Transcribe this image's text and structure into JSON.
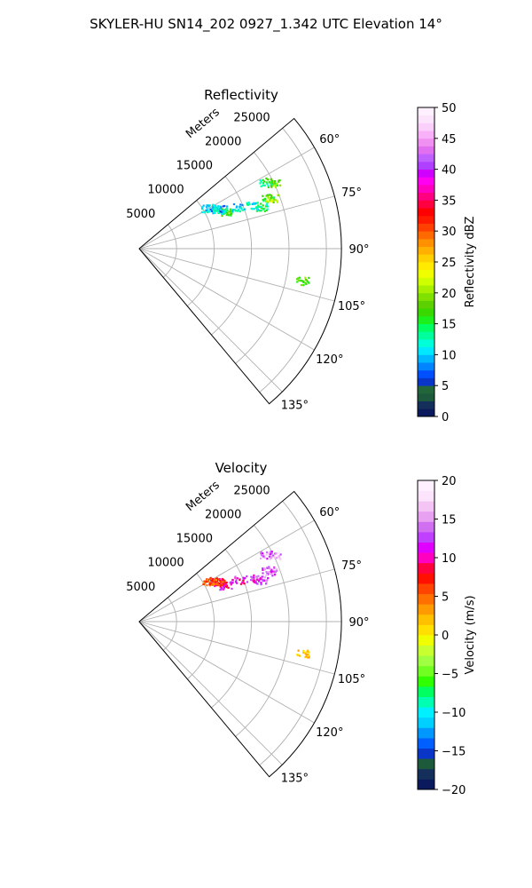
{
  "figure": {
    "title": "SKYLER-HU  SN14_202  0927_1.342 UTC Elevation 14°"
  },
  "chart_data": [
    {
      "type": "polar-sector",
      "title": "Reflectivity",
      "range_label": "Meters",
      "range_ticks": [
        5000,
        10000,
        15000,
        20000,
        25000
      ],
      "range_ticks_text": [
        "5000",
        "10000",
        "15000",
        "20000",
        "25000"
      ],
      "range_max": 27000,
      "azimuth_range_deg": [
        50,
        140
      ],
      "azimuth_ticks_text": [
        "60°",
        "75°",
        "90°",
        "105°",
        "120°",
        "135°"
      ],
      "grid": true,
      "colorbar": {
        "label": "Reflectivity dBZ",
        "min": 0,
        "max": 50,
        "ticks": [
          0,
          5,
          10,
          15,
          20,
          25,
          30,
          35,
          40,
          45,
          50
        ],
        "ticks_text": [
          "0",
          "5",
          "10",
          "15",
          "20",
          "25",
          "30",
          "35",
          "40",
          "45",
          "50"
        ]
      },
      "echo_regions": [
        {
          "azimuth_deg": 64,
          "range_m": 20000,
          "value": 18
        },
        {
          "azimuth_deg": 62,
          "range_m": 19100,
          "value": 15
        },
        {
          "azimuth_deg": 68,
          "range_m": 18500,
          "value": 16
        },
        {
          "azimuth_deg": 69,
          "range_m": 18900,
          "value": 20
        },
        {
          "azimuth_deg": 71,
          "range_m": 17200,
          "value": 14
        },
        {
          "azimuth_deg": 69,
          "range_m": 16100,
          "value": 12
        },
        {
          "azimuth_deg": 67,
          "range_m": 14300,
          "value": 11
        },
        {
          "azimuth_deg": 67,
          "range_m": 12500,
          "value": 17
        },
        {
          "azimuth_deg": 64,
          "range_m": 12000,
          "value": 12
        },
        {
          "azimuth_deg": 63,
          "range_m": 11800,
          "value": 9
        },
        {
          "azimuth_deg": 61,
          "range_m": 11200,
          "value": 12
        },
        {
          "azimuth_deg": 59,
          "range_m": 10600,
          "value": 10
        },
        {
          "azimuth_deg": 101,
          "range_m": 22200,
          "value": 18
        }
      ]
    },
    {
      "type": "polar-sector",
      "title": "Velocity",
      "range_label": "Meters",
      "range_ticks": [
        5000,
        10000,
        15000,
        20000,
        25000
      ],
      "range_ticks_text": [
        "5000",
        "10000",
        "15000",
        "20000",
        "25000"
      ],
      "range_max": 27000,
      "azimuth_range_deg": [
        50,
        140
      ],
      "azimuth_ticks_text": [
        "60°",
        "75°",
        "90°",
        "105°",
        "120°",
        "135°"
      ],
      "grid": true,
      "colorbar": {
        "label": "Velocity (m/s)",
        "min": -20,
        "max": 20,
        "ticks": [
          -20,
          -15,
          -10,
          -5,
          0,
          5,
          10,
          15,
          20
        ],
        "ticks_text": [
          "−20",
          "−15",
          "−10",
          "−5",
          "0",
          "5",
          "10",
          "15",
          "20"
        ]
      },
      "echo_regions": [
        {
          "azimuth_deg": 64,
          "range_m": 20000,
          "value": 16
        },
        {
          "azimuth_deg": 62,
          "range_m": 19100,
          "value": 14
        },
        {
          "azimuth_deg": 68,
          "range_m": 18500,
          "value": 13
        },
        {
          "azimuth_deg": 69,
          "range_m": 18900,
          "value": 14
        },
        {
          "azimuth_deg": 71,
          "range_m": 17200,
          "value": 13
        },
        {
          "azimuth_deg": 69,
          "range_m": 16100,
          "value": 12
        },
        {
          "azimuth_deg": 67,
          "range_m": 14300,
          "value": 11
        },
        {
          "azimuth_deg": 67,
          "range_m": 12500,
          "value": 10
        },
        {
          "azimuth_deg": 64,
          "range_m": 12000,
          "value": 9
        },
        {
          "azimuth_deg": 63,
          "range_m": 11800,
          "value": 8
        },
        {
          "azimuth_deg": 61,
          "range_m": 11200,
          "value": 6
        },
        {
          "azimuth_deg": 59,
          "range_m": 10600,
          "value": 5
        },
        {
          "azimuth_deg": 101,
          "range_m": 22200,
          "value": 1
        }
      ]
    }
  ],
  "colors": {
    "axis": "#000000",
    "grid": "#b0b0b0",
    "background": "#ffffff"
  }
}
